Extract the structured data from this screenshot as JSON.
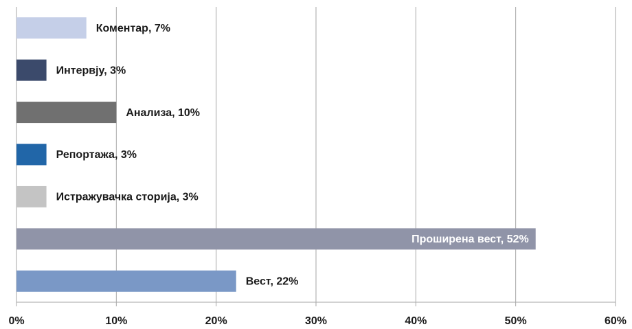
{
  "chart_data": {
    "type": "barh",
    "values": [
      7,
      3,
      10,
      3,
      3,
      52,
      22
    ],
    "value_labels": [
      "Коментар, 7%",
      "Интервју, 3%",
      "Анализа, 10%",
      "Репортажа, 3%",
      "Истражувачка сторија, 3%",
      "Проширена вест, 52%",
      "Вест, 22%"
    ],
    "colors": [
      "#c5cfe8",
      "#3b4a6b",
      "#707070",
      "#2166a8",
      "#c4c4c4",
      "#9094a8",
      "#7a98c6"
    ],
    "xlim": [
      0,
      60
    ],
    "xticks": [
      {
        "value": 0,
        "label": "0%"
      },
      {
        "value": 10,
        "label": "10%"
      },
      {
        "value": 20,
        "label": "20%"
      },
      {
        "value": 30,
        "label": "30%"
      },
      {
        "value": 40,
        "label": "40%"
      },
      {
        "value": 50,
        "label": "50%"
      },
      {
        "value": 60,
        "label": "60%"
      }
    ],
    "grid": true
  }
}
